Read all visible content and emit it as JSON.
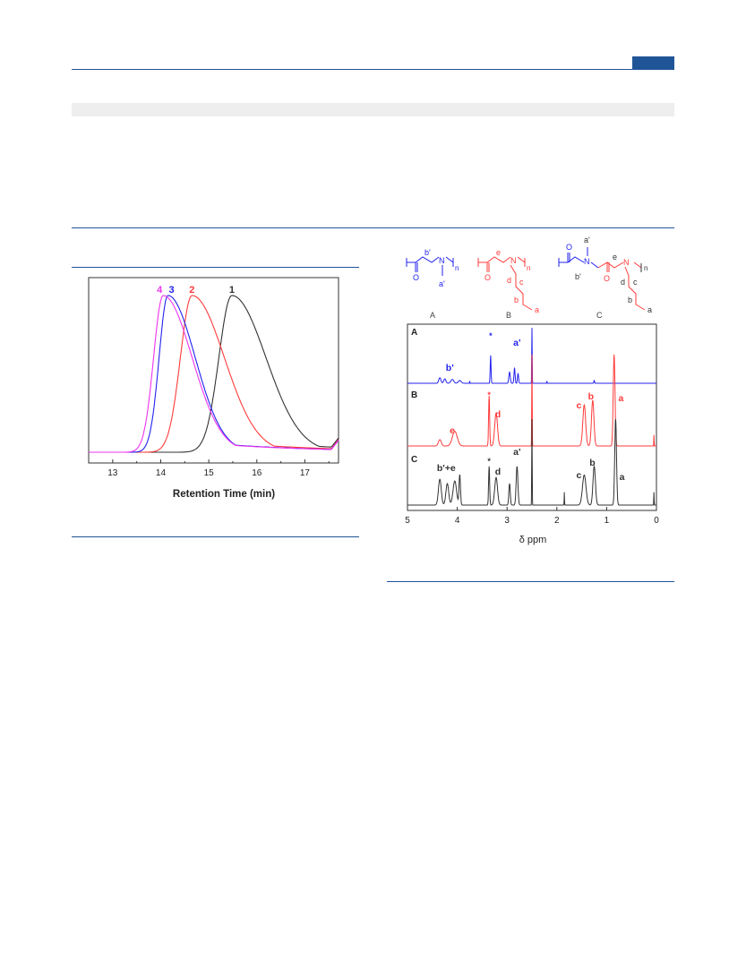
{
  "colors": {
    "rule": "#1f5597",
    "band": "#eeeeee",
    "black": "#333333",
    "red": "#ff3b3b",
    "blue": "#2222ee",
    "magenta": "#ee33ee"
  },
  "gpc": {
    "chart_data": {
      "type": "line",
      "xlabel": "Retention Time (min)",
      "xlim": [
        12.5,
        17.7
      ],
      "xticks": [
        13,
        14,
        15,
        16,
        17
      ],
      "grid": false,
      "series": [
        {
          "name": "1",
          "color": "#333333",
          "peak": 15.48
        },
        {
          "name": "2",
          "color": "#ff3b3b",
          "peak": 14.65
        },
        {
          "name": "3",
          "color": "#2222ee",
          "peak": 14.15
        },
        {
          "name": "4",
          "color": "#ee33ee",
          "peak": 14.05
        }
      ]
    }
  },
  "nmr": {
    "structures": {
      "A": {
        "labels": [
          "b'",
          "N",
          "n",
          "a'",
          "O"
        ]
      },
      "B": {
        "labels": [
          "e",
          "N",
          "n",
          "O",
          "d",
          "c",
          "b",
          "a"
        ]
      },
      "C": {
        "labels": [
          "O",
          "a'",
          "N",
          "e",
          "N",
          "n",
          "b'",
          "O",
          "d",
          "c",
          "b",
          "a"
        ]
      }
    },
    "structure_captions": [
      "A",
      "B",
      "C"
    ],
    "chart_data": {
      "type": "line",
      "xlabel": "δ ppm",
      "xlim": [
        5,
        0
      ],
      "xticks": [
        5,
        4,
        3,
        2,
        1,
        0
      ],
      "reversed_x": true,
      "grid": false,
      "series": [
        {
          "name": "A",
          "color": "#2222ee",
          "peak_labels": [
            {
              "text": "b'",
              "ppm": 4.15
            },
            {
              "text": "*",
              "ppm": 3.33
            },
            {
              "text": "a'",
              "ppm": 2.8
            }
          ]
        },
        {
          "name": "B",
          "color": "#ff3b3b",
          "peak_labels": [
            {
              "text": "e",
              "ppm": 4.1
            },
            {
              "text": "*",
              "ppm": 3.36
            },
            {
              "text": "d",
              "ppm": 3.22
            },
            {
              "text": "c",
              "ppm": 1.45
            },
            {
              "text": "b",
              "ppm": 1.28
            },
            {
              "text": "a",
              "ppm": 0.82
            }
          ]
        },
        {
          "name": "C",
          "color": "#333333",
          "peak_labels": [
            {
              "text": "b'+e",
              "ppm": 4.15
            },
            {
              "text": "*",
              "ppm": 3.36
            },
            {
              "text": "d",
              "ppm": 3.22
            },
            {
              "text": "a'",
              "ppm": 2.8
            },
            {
              "text": "c",
              "ppm": 1.45
            },
            {
              "text": "b",
              "ppm": 1.25
            },
            {
              "text": "a",
              "ppm": 0.8
            }
          ]
        }
      ]
    }
  }
}
